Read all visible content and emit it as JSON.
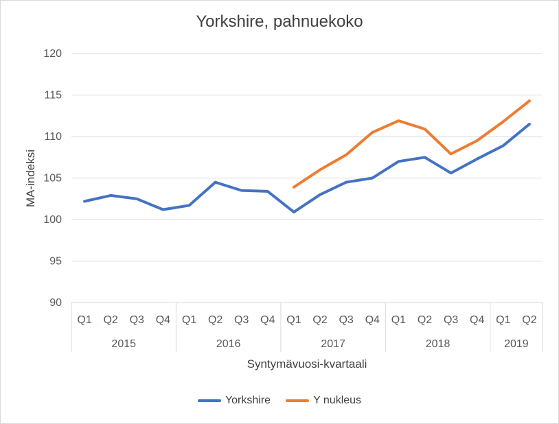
{
  "chart_data": {
    "type": "line",
    "title": "Yorkshire, pahnuekoko",
    "xlabel": "Syntymävuosi-kvartaali",
    "ylabel": "MA-indeksi",
    "ylim": [
      90,
      120
    ],
    "yticks": [
      90,
      95,
      100,
      105,
      110,
      115,
      120
    ],
    "grid": true,
    "legend_position": "bottom",
    "categories": [
      "Q1",
      "Q2",
      "Q3",
      "Q4",
      "Q1",
      "Q2",
      "Q3",
      "Q4",
      "Q1",
      "Q2",
      "Q3",
      "Q4",
      "Q1",
      "Q2",
      "Q3",
      "Q4",
      "Q1",
      "Q2"
    ],
    "groups": [
      {
        "label": "2015",
        "count": 4
      },
      {
        "label": "2016",
        "count": 4
      },
      {
        "label": "2017",
        "count": 4
      },
      {
        "label": "2018",
        "count": 4
      },
      {
        "label": "2019",
        "count": 2
      }
    ],
    "series": [
      {
        "name": "Yorkshire",
        "color": "#4472c4",
        "values": [
          102.2,
          102.9,
          102.5,
          101.2,
          101.7,
          104.5,
          103.5,
          103.4,
          100.9,
          103.0,
          104.5,
          105.0,
          107.0,
          107.5,
          105.6,
          107.3,
          108.9,
          111.5
        ]
      },
      {
        "name": "Y nukleus",
        "color": "#ed7d31",
        "values": [
          null,
          null,
          null,
          null,
          null,
          null,
          null,
          null,
          103.9,
          106.0,
          107.8,
          110.5,
          111.9,
          110.9,
          107.9,
          109.5,
          111.8,
          114.3
        ]
      }
    ]
  }
}
